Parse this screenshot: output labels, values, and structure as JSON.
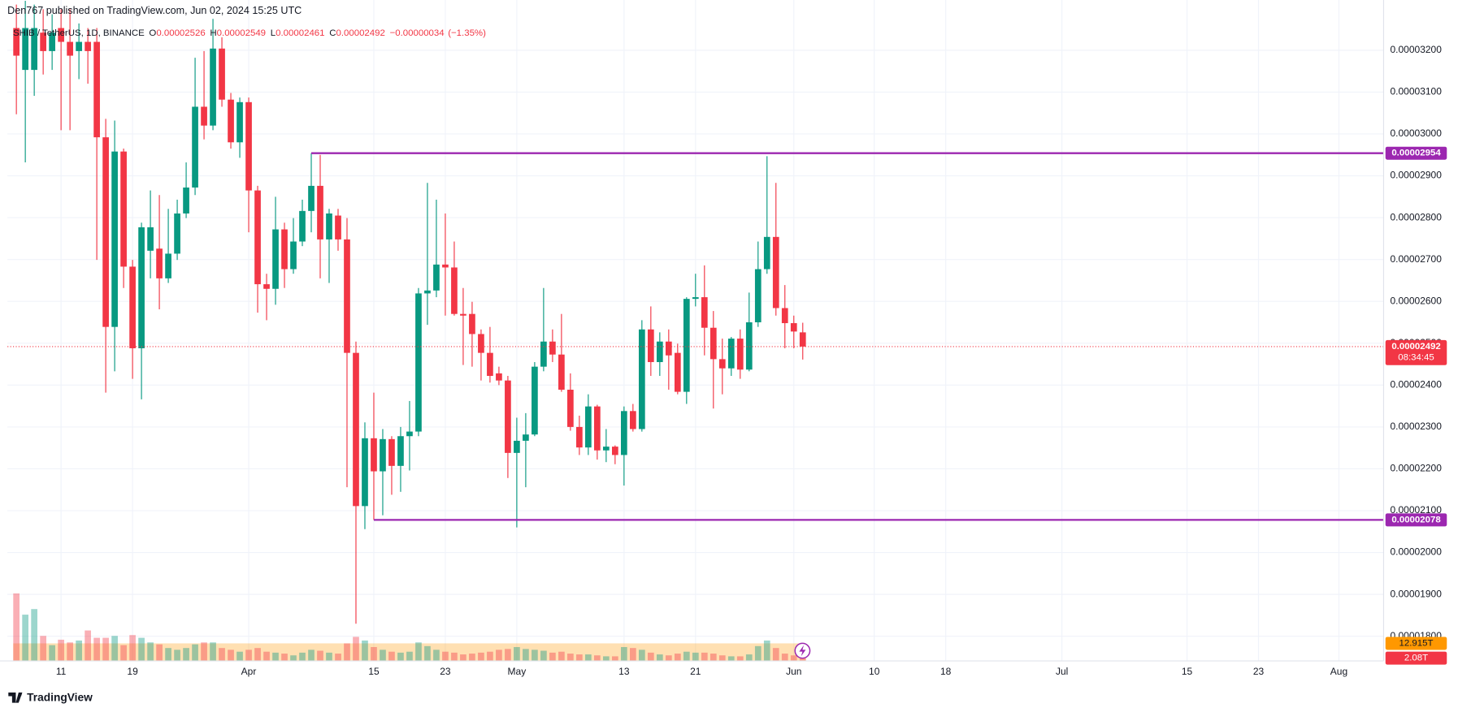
{
  "header": "Den767 published on TradingView.com, Jun 02, 2024 15:25 UTC",
  "footer": {
    "brand": "TradingView"
  },
  "chart_data": {
    "type": "candlestick",
    "symbol": "SHIB / TetherUS, 1D, BINANCE",
    "legend_labels": {
      "open": "O",
      "high": "H",
      "low": "L",
      "close": "C"
    },
    "change": {
      "value": -3.4e-07,
      "label": "−0.00000034"
    },
    "change_percent": {
      "value": -1.35,
      "label": "(−1.35%)"
    },
    "up_color": "#089981",
    "down_color": "#f23645",
    "x": [
      "2024-03-06",
      "2024-03-07",
      "2024-03-08",
      "2024-03-09",
      "2024-03-10",
      "2024-03-11",
      "2024-03-12",
      "2024-03-13",
      "2024-03-14",
      "2024-03-15",
      "2024-03-16",
      "2024-03-17",
      "2024-03-18",
      "2024-03-19",
      "2024-03-20",
      "2024-03-21",
      "2024-03-22",
      "2024-03-23",
      "2024-03-24",
      "2024-03-25",
      "2024-03-26",
      "2024-03-27",
      "2024-03-28",
      "2024-03-29",
      "2024-03-30",
      "2024-03-31",
      "2024-04-01",
      "2024-04-02",
      "2024-04-03",
      "2024-04-04",
      "2024-04-05",
      "2024-04-06",
      "2024-04-07",
      "2024-04-08",
      "2024-04-09",
      "2024-04-10",
      "2024-04-11",
      "2024-04-12",
      "2024-04-13",
      "2024-04-14",
      "2024-04-15",
      "2024-04-16",
      "2024-04-17",
      "2024-04-18",
      "2024-04-19",
      "2024-04-20",
      "2024-04-21",
      "2024-04-22",
      "2024-04-23",
      "2024-04-24",
      "2024-04-25",
      "2024-04-26",
      "2024-04-27",
      "2024-04-28",
      "2024-04-29",
      "2024-04-30",
      "2024-05-01",
      "2024-05-02",
      "2024-05-03",
      "2024-05-04",
      "2024-05-05",
      "2024-05-06",
      "2024-05-07",
      "2024-05-08",
      "2024-05-09",
      "2024-05-10",
      "2024-05-11",
      "2024-05-12",
      "2024-05-13",
      "2024-05-14",
      "2024-05-15",
      "2024-05-16",
      "2024-05-17",
      "2024-05-18",
      "2024-05-19",
      "2024-05-20",
      "2024-05-21",
      "2024-05-22",
      "2024-05-23",
      "2024-05-24",
      "2024-05-25",
      "2024-05-26",
      "2024-05-27",
      "2024-05-28",
      "2024-05-29",
      "2024-05-30",
      "2024-05-31",
      "2024-06-01",
      "2024-06-02"
    ],
    "open": [
      3.253e-05,
      3.153e-05,
      3.153e-05,
      3.242e-05,
      3.198e-05,
      3.253e-05,
      3.22e-05,
      3.198e-05,
      3.22e-05,
      3.22e-05,
      2.992e-05,
      2.539e-05,
      2.958e-05,
      2.683e-05,
      2.488e-05,
      2.721e-05,
      2.726e-05,
      2.655e-05,
      2.714e-05,
      2.81e-05,
      2.872e-05,
      3.065e-05,
      3.02e-05,
      3.204e-05,
      3.082e-05,
      2.98e-05,
      3.076e-05,
      2.865e-05,
      2.641e-05,
      2.63e-05,
      2.772e-05,
      2.677e-05,
      2.743e-05,
      2.816e-05,
      2.876e-05,
      2.748e-05,
      2.805e-05,
      2.748e-05,
      2.477e-05,
      2.111e-05,
      2.273e-05,
      2.194e-05,
      2.271e-05,
      2.207e-05,
      2.278e-05,
      2.289e-05,
      2.619e-05,
      2.626e-05,
      2.688e-05,
      2.681e-05,
      2.57e-05,
      2.57e-05,
      2.522e-05,
      2.477e-05,
      2.428e-05,
      2.411e-05,
      2.238e-05,
      2.267e-05,
      2.282e-05,
      2.444e-05,
      2.504e-05,
      2.473e-05,
      2.389e-05,
      2.3e-05,
      2.251e-05,
      2.349e-05,
      2.244e-05,
      2.253e-05,
      2.233e-05,
      2.338e-05,
      2.295e-05,
      2.533e-05,
      2.455e-05,
      2.504e-05,
      2.477e-05,
      2.384e-05,
      2.606e-05,
      2.61e-05,
      2.537e-05,
      2.462e-05,
      2.44e-05,
      2.511e-05,
      2.437e-05,
      2.55e-05,
      2.677e-05,
      2.754e-05,
      2.584e-05,
      2.548e-05,
      2.526e-05
    ],
    "high": [
      3.309e-05,
      3.318e-05,
      3.309e-05,
      3.298e-05,
      3.286e-05,
      3.298e-05,
      3.298e-05,
      3.264e-05,
      3.253e-05,
      3.253e-05,
      3.036e-05,
      3.032e-05,
      2.965e-05,
      2.699e-05,
      2.788e-05,
      2.865e-05,
      2.854e-05,
      2.821e-05,
      2.843e-05,
      2.932e-05,
      3.182e-05,
      3.198e-05,
      3.275e-05,
      3.231e-05,
      3.098e-05,
      3.087e-05,
      3.087e-05,
      2.876e-05,
      2.666e-05,
      2.85e-05,
      2.788e-05,
      2.799e-05,
      2.843e-05,
      2.954e-05,
      2.95e-05,
      2.821e-05,
      2.821e-05,
      2.799e-05,
      2.504e-05,
      2.311e-05,
      2.382e-05,
      2.295e-05,
      2.278e-05,
      2.3e-05,
      2.362e-05,
      2.632e-05,
      2.883e-05,
      2.843e-05,
      2.81e-05,
      2.743e-05,
      2.632e-05,
      2.599e-05,
      2.533e-05,
      2.539e-05,
      2.444e-05,
      2.422e-05,
      2.322e-05,
      2.333e-05,
      2.455e-05,
      2.632e-05,
      2.533e-05,
      2.57e-05,
      2.428e-05,
      2.327e-05,
      2.378e-05,
      2.353e-05,
      2.295e-05,
      2.256e-05,
      2.349e-05,
      2.355e-05,
      2.555e-05,
      2.588e-05,
      2.526e-05,
      2.533e-05,
      2.499e-05,
      2.61e-05,
      2.666e-05,
      2.686e-05,
      2.577e-05,
      2.511e-05,
      2.515e-05,
      2.533e-05,
      2.621e-05,
      2.743e-05,
      2.947e-05,
      2.883e-05,
      2.639e-05,
      2.566e-05,
      2.549e-05
    ],
    "low": [
      3.047e-05,
      2.932e-05,
      3.091e-05,
      3.142e-05,
      3.153e-05,
      3.009e-05,
      3.009e-05,
      3.131e-05,
      3.12e-05,
      2.699e-05,
      2.382e-05,
      2.433e-05,
      2.632e-05,
      2.415e-05,
      2.366e-05,
      2.655e-05,
      2.581e-05,
      2.644e-05,
      2.699e-05,
      2.799e-05,
      2.854e-05,
      2.987e-05,
      3.009e-05,
      3.065e-05,
      2.965e-05,
      2.943e-05,
      2.765e-05,
      2.573e-05,
      2.555e-05,
      2.592e-05,
      2.632e-05,
      2.666e-05,
      2.732e-05,
      2.765e-05,
      2.655e-05,
      2.644e-05,
      2.721e-05,
      2.156e-05,
      1.83e-05,
      2.056e-05,
      2.078e-05,
      2.089e-05,
      2.138e-05,
      2.145e-05,
      2.196e-05,
      2.278e-05,
      2.544e-05,
      2.61e-05,
      2.566e-05,
      2.566e-05,
      2.448e-05,
      2.444e-05,
      2.411e-05,
      2.406e-05,
      2.4e-05,
      2.178e-05,
      2.06e-05,
      2.156e-05,
      2.278e-05,
      2.433e-05,
      2.455e-05,
      2.384e-05,
      2.291e-05,
      2.233e-05,
      2.233e-05,
      2.222e-05,
      2.216e-05,
      2.211e-05,
      2.16e-05,
      2.289e-05,
      2.289e-05,
      2.422e-05,
      2.422e-05,
      2.389e-05,
      2.378e-05,
      2.355e-05,
      2.588e-05,
      2.471e-05,
      2.344e-05,
      2.378e-05,
      2.422e-05,
      2.415e-05,
      2.433e-05,
      2.539e-05,
      2.666e-05,
      2.566e-05,
      2.488e-05,
      2.488e-05,
      2.461e-05
    ],
    "close": [
      3.187e-05,
      3.253e-05,
      3.253e-05,
      3.198e-05,
      3.242e-05,
      3.22e-05,
      3.187e-05,
      3.22e-05,
      3.198e-05,
      2.992e-05,
      2.539e-05,
      2.958e-05,
      2.683e-05,
      2.488e-05,
      2.777e-05,
      2.777e-05,
      2.655e-05,
      2.714e-05,
      2.81e-05,
      2.872e-05,
      3.065e-05,
      3.02e-05,
      3.204e-05,
      3.082e-05,
      2.98e-05,
      3.076e-05,
      2.865e-05,
      2.641e-05,
      2.63e-05,
      2.772e-05,
      2.677e-05,
      2.743e-05,
      2.816e-05,
      2.876e-05,
      2.748e-05,
      2.81e-05,
      2.748e-05,
      2.477e-05,
      2.111e-05,
      2.273e-05,
      2.194e-05,
      2.271e-05,
      2.207e-05,
      2.278e-05,
      2.289e-05,
      2.619e-05,
      2.626e-05,
      2.688e-05,
      2.681e-05,
      2.57e-05,
      2.566e-05,
      2.522e-05,
      2.477e-05,
      2.422e-05,
      2.411e-05,
      2.238e-05,
      2.267e-05,
      2.282e-05,
      2.444e-05,
      2.504e-05,
      2.473e-05,
      2.389e-05,
      2.3e-05,
      2.251e-05,
      2.349e-05,
      2.244e-05,
      2.253e-05,
      2.233e-05,
      2.338e-05,
      2.295e-05,
      2.533e-05,
      2.455e-05,
      2.504e-05,
      2.471e-05,
      2.384e-05,
      2.606e-05,
      2.61e-05,
      2.537e-05,
      2.462e-05,
      2.44e-05,
      2.511e-05,
      2.437e-05,
      2.55e-05,
      2.677e-05,
      2.754e-05,
      2.584e-05,
      2.548e-05,
      2.528e-05,
      2.492e-05
    ],
    "volume": {
      "values": [
        49.6,
        34,
        38.1,
        18.4,
        11.6,
        15.6,
        13.6,
        15,
        22.4,
        17,
        17,
        18.4,
        11.6,
        19,
        17,
        13.6,
        12.2,
        9.5,
        8.2,
        9.5,
        12.2,
        13.6,
        13.6,
        9.5,
        8.2,
        6.8,
        8.2,
        9.5,
        6.8,
        6.1,
        5.4,
        4.1,
        6.1,
        8.2,
        7.5,
        6.1,
        5.4,
        12.9,
        17.7,
        15,
        10.2,
        8.2,
        6.8,
        6.1,
        6.8,
        13.6,
        10.9,
        8.2,
        6.8,
        6.1,
        4.8,
        5.4,
        6.1,
        6.8,
        8.2,
        8.8,
        10.2,
        8.8,
        8.2,
        7.5,
        6.1,
        6.8,
        5.4,
        4.8,
        4.8,
        4.1,
        3.4,
        3.4,
        10.2,
        9.5,
        8.2,
        6.1,
        4.8,
        4.1,
        5.4,
        6.8,
        6.1,
        6.1,
        5.4,
        4.1,
        3.4,
        3.4,
        4.8,
        10.9,
        15,
        9.5,
        5.4,
        4.1,
        2.08
      ],
      "last_label": "2.08T",
      "ma": 12.915,
      "ma_label": "12.915T",
      "ma_color": "#ff9800",
      "ylim": [
        0,
        120
      ]
    },
    "levels": [
      {
        "value": 2.954e-05,
        "start": "2024-04-08",
        "color": "#9c27b0"
      },
      {
        "value": 2.078e-05,
        "start": "2024-04-15",
        "color": "#9c27b0"
      }
    ],
    "countdown": "08:34:45",
    "xlim": [
      "2024-03-05",
      "2024-08-06"
    ],
    "xticks": [
      {
        "value": "2024-03-11",
        "label": "11"
      },
      {
        "value": "2024-03-19",
        "label": "19"
      },
      {
        "value": "2024-04-01",
        "label": "Apr"
      },
      {
        "value": "2024-04-15",
        "label": "15"
      },
      {
        "value": "2024-04-23",
        "label": "23"
      },
      {
        "value": "2024-05-01",
        "label": "May"
      },
      {
        "value": "2024-05-13",
        "label": "13"
      },
      {
        "value": "2024-05-21",
        "label": "21"
      },
      {
        "value": "2024-06-01",
        "label": "Jun"
      },
      {
        "value": "2024-06-10",
        "label": "10"
      },
      {
        "value": "2024-06-18",
        "label": "18"
      },
      {
        "value": "2024-07-01",
        "label": "Jul"
      },
      {
        "value": "2024-07-15",
        "label": "15"
      },
      {
        "value": "2024-07-23",
        "label": "23"
      },
      {
        "value": "2024-08-01",
        "label": "Aug"
      }
    ],
    "ylim": [
      1.741e-05,
      3.32e-05
    ],
    "yticks": [
      {
        "value": 1.8e-05,
        "label": "0.00001800"
      },
      {
        "value": 1.9e-05,
        "label": "0.00001900"
      },
      {
        "value": 2e-05,
        "label": "0.00002000"
      },
      {
        "value": 2.1e-05,
        "label": "0.00002100"
      },
      {
        "value": 2.2e-05,
        "label": "0.00002200"
      },
      {
        "value": 2.3e-05,
        "label": "0.00002300"
      },
      {
        "value": 2.4e-05,
        "label": "0.00002400"
      },
      {
        "value": 2.5e-05,
        "label": "0.00002500"
      },
      {
        "value": 2.6e-05,
        "label": "0.00002600"
      },
      {
        "value": 2.7e-05,
        "label": "0.00002700"
      },
      {
        "value": 2.8e-05,
        "label": "0.00002800"
      },
      {
        "value": 2.9e-05,
        "label": "0.00002900"
      },
      {
        "value": 3e-05,
        "label": "0.00003000"
      },
      {
        "value": 3.1e-05,
        "label": "0.00003100"
      },
      {
        "value": 3.2e-05,
        "label": "0.00003200"
      }
    ],
    "grid": true
  }
}
